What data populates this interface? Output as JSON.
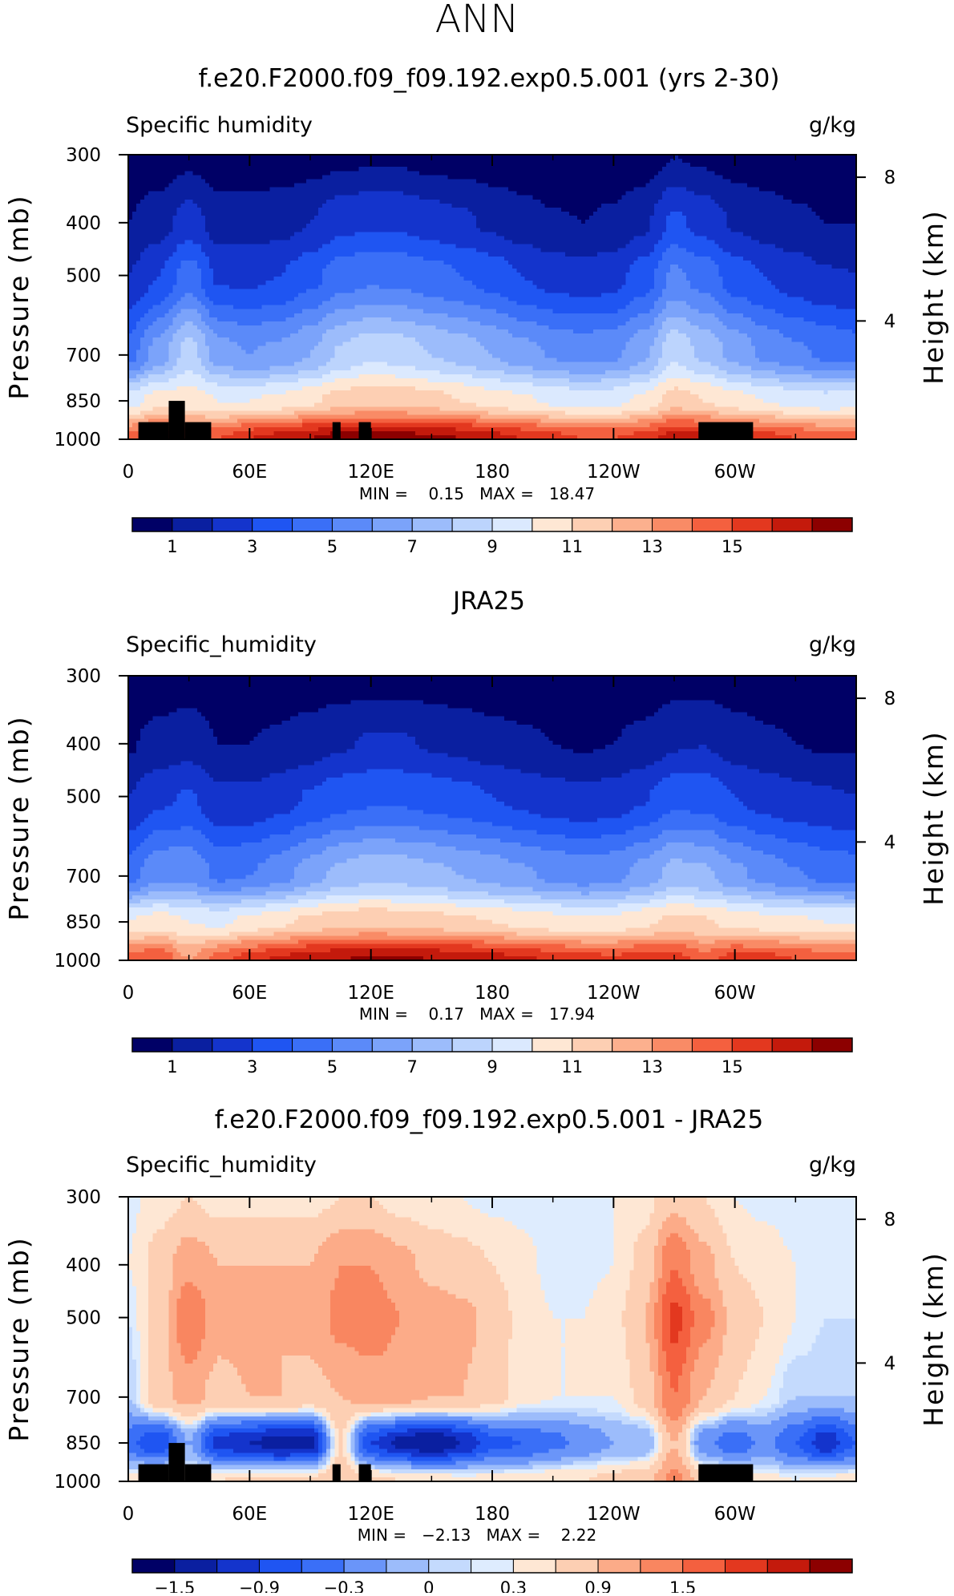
{
  "page_title": "ANN",
  "colors": {
    "absolute": [
      "#000066",
      "#0a1fa0",
      "#1434cc",
      "#1f55f2",
      "#3a6ff7",
      "#5b8af9",
      "#7ba3fa",
      "#9cbcfb",
      "#bcd4fd",
      "#dbe9fe",
      "#fee7d4",
      "#fdcfb3",
      "#fcb08e",
      "#f98b66",
      "#f4603f",
      "#e3381f",
      "#c41a0c",
      "#8c0000"
    ],
    "difference": [
      "#000066",
      "#0a1fa0",
      "#1434cc",
      "#1f55f2",
      "#3a6ff7",
      "#6a95f9",
      "#9cbcfb",
      "#c4dafd",
      "#deecfe",
      "#fee7d4",
      "#fdcfb3",
      "#fcab88",
      "#f98660",
      "#f4603f",
      "#e3381f",
      "#c41a0c",
      "#8c0000"
    ]
  },
  "panels": [
    {
      "title": "f.e20.F2000.f09_f09.192.exp0.5.001 (yrs 2-30)",
      "var_label": "Specific humidity",
      "units": "g/kg",
      "stats_text": "MIN =    0.15   MAX =   18.47",
      "colorbar_labels": [
        "1",
        "3",
        "5",
        "7",
        "9",
        "11",
        "13",
        "15"
      ]
    },
    {
      "title": "JRA25",
      "var_label": "Specific_humidity",
      "units": "g/kg",
      "stats_text": "MIN =    0.17   MAX =   17.94",
      "colorbar_labels": [
        "1",
        "3",
        "5",
        "7",
        "9",
        "11",
        "13",
        "15"
      ]
    },
    {
      "title": "f.e20.F2000.f09_f09.192.exp0.5.001 - JRA25",
      "var_label": "Specific_humidity",
      "units": "g/kg",
      "stats_text": "MIN =   −2.13   MAX =    2.22",
      "colorbar_labels": [
        "−1.5",
        "−0.9",
        "−0.3",
        "0",
        "0.3",
        "0.9",
        "1.5"
      ]
    }
  ],
  "chart_data": [
    {
      "type": "heatmap",
      "title": "f.e20.F2000.f09_f09.192.exp0.5.001 (yrs 2-30)",
      "variable": "Specific humidity",
      "units": "g/kg",
      "ylabel": "Pressure (mb)",
      "y2label": "Height (km)",
      "x_ticks": [
        "0",
        "60E",
        "120E",
        "180",
        "120W",
        "60W"
      ],
      "x_tick_values": [
        0,
        60,
        120,
        180,
        240,
        300
      ],
      "xlim": [
        0,
        360
      ],
      "y_ticks": [
        "300",
        "400",
        "500",
        "700",
        "850",
        "1000"
      ],
      "y_tick_values": [
        300,
        400,
        500,
        700,
        850,
        1000
      ],
      "ylim": [
        1000,
        300
      ],
      "y2_ticks": [
        "8",
        "4"
      ],
      "min": 0.15,
      "max": 18.47,
      "contour_levels": [
        1,
        2,
        3,
        4,
        5,
        6,
        7,
        8,
        9,
        10,
        11,
        12,
        13,
        14,
        15,
        16,
        17
      ],
      "colorbar_labels": [
        "1",
        "3",
        "5",
        "7",
        "9",
        "11",
        "13",
        "15"
      ],
      "field": {
        "lon": [
          0,
          15,
          30,
          45,
          60,
          75,
          90,
          105,
          120,
          135,
          150,
          165,
          180,
          195,
          210,
          225,
          240,
          255,
          270,
          285,
          300,
          315,
          330,
          345,
          360
        ],
        "plev": [
          300,
          400,
          500,
          700,
          850,
          1000
        ],
        "q": [
          [
            0.3,
            0.4,
            0.7,
            0.4,
            0.4,
            0.4,
            0.5,
            0.7,
            0.8,
            0.8,
            0.6,
            0.5,
            0.4,
            0.3,
            0.3,
            0.2,
            0.3,
            0.4,
            1.0,
            0.8,
            0.5,
            0.4,
            0.3,
            0.3,
            0.3
          ],
          [
            1.0,
            1.5,
            2.5,
            1.5,
            1.5,
            1.6,
            2.0,
            2.7,
            2.9,
            2.8,
            2.5,
            2.2,
            1.8,
            1.4,
            1.1,
            1.0,
            1.2,
            1.8,
            3.2,
            2.6,
            1.9,
            1.5,
            1.2,
            1.0,
            1.0
          ],
          [
            2.0,
            3.0,
            4.5,
            2.8,
            2.8,
            3.0,
            3.7,
            4.5,
            4.8,
            4.7,
            4.4,
            4.0,
            3.6,
            3.0,
            2.6,
            2.4,
            2.6,
            3.5,
            5.2,
            4.6,
            3.5,
            3.0,
            2.5,
            2.1,
            2.0
          ],
          [
            4.5,
            6.5,
            8.5,
            6.5,
            6.0,
            6.3,
            7.0,
            8.2,
            8.8,
            8.6,
            8.0,
            7.6,
            7.0,
            6.4,
            5.9,
            5.6,
            5.8,
            6.8,
            8.8,
            7.8,
            6.7,
            5.8,
            5.2,
            4.8,
            4.5
          ],
          [
            9.5,
            10.5,
            10.5,
            10.0,
            10.0,
            10.3,
            10.8,
            11.5,
            11.8,
            11.7,
            11.4,
            11.0,
            10.6,
            10.2,
            9.8,
            9.6,
            9.7,
            10.3,
            11.5,
            11.0,
            10.4,
            10.0,
            9.6,
            9.4,
            9.5
          ],
          [
            14.5,
            15.5,
            15.0,
            15.0,
            16.0,
            16.5,
            17.0,
            17.5,
            17.5,
            17.5,
            17.3,
            17.0,
            16.5,
            16.0,
            15.5,
            15.0,
            15.0,
            15.5,
            16.5,
            16.5,
            16.0,
            15.5,
            15.0,
            14.5,
            14.5
          ]
        ]
      },
      "topography": [
        {
          "lon_range": [
            5,
            20
          ],
          "top_mb": 930
        },
        {
          "lon_range": [
            20,
            28
          ],
          "top_mb": 850
        },
        {
          "lon_range": [
            28,
            41
          ],
          "top_mb": 930
        },
        {
          "lon_range": [
            101,
            105
          ],
          "top_mb": 930
        },
        {
          "lon_range": [
            114,
            120
          ],
          "top_mb": 930
        },
        {
          "lon_range": [
            282,
            309
          ],
          "top_mb": 930
        }
      ]
    },
    {
      "type": "heatmap",
      "title": "JRA25",
      "variable": "Specific_humidity",
      "units": "g/kg",
      "ylabel": "Pressure (mb)",
      "y2label": "Height (km)",
      "x_ticks": [
        "0",
        "60E",
        "120E",
        "180",
        "120W",
        "60W"
      ],
      "x_tick_values": [
        0,
        60,
        120,
        180,
        240,
        300
      ],
      "xlim": [
        0,
        360
      ],
      "y_ticks": [
        "300",
        "400",
        "500",
        "700",
        "850",
        "1000"
      ],
      "y_tick_values": [
        300,
        400,
        500,
        700,
        850,
        1000
      ],
      "ylim": [
        1000,
        300
      ],
      "y2_ticks": [
        "8",
        "4"
      ],
      "min": 0.17,
      "max": 17.94,
      "contour_levels": [
        1,
        2,
        3,
        4,
        5,
        6,
        7,
        8,
        9,
        10,
        11,
        12,
        13,
        14,
        15,
        16,
        17
      ],
      "colorbar_labels": [
        "1",
        "3",
        "5",
        "7",
        "9",
        "11",
        "13",
        "15"
      ],
      "field": {
        "lon": [
          0,
          15,
          30,
          45,
          60,
          75,
          90,
          105,
          120,
          135,
          150,
          165,
          180,
          195,
          210,
          225,
          240,
          255,
          270,
          285,
          300,
          315,
          330,
          345,
          360
        ],
        "plev": [
          300,
          400,
          500,
          700,
          850,
          1000
        ],
        "q": [
          [
            0.3,
            0.4,
            0.5,
            0.3,
            0.3,
            0.3,
            0.4,
            0.5,
            0.6,
            0.6,
            0.5,
            0.4,
            0.3,
            0.3,
            0.2,
            0.2,
            0.3,
            0.3,
            0.6,
            0.6,
            0.4,
            0.3,
            0.3,
            0.3,
            0.3
          ],
          [
            0.9,
            1.3,
            1.6,
            1.0,
            1.0,
            1.2,
            1.5,
            1.9,
            2.1,
            2.1,
            1.9,
            1.7,
            1.4,
            1.2,
            1.0,
            0.9,
            1.0,
            1.3,
            1.9,
            2.0,
            1.5,
            1.2,
            1.0,
            0.9,
            0.9
          ],
          [
            2.0,
            2.8,
            3.1,
            2.2,
            2.2,
            2.6,
            3.1,
            3.6,
            3.8,
            3.8,
            3.6,
            3.3,
            3.0,
            2.7,
            2.4,
            2.2,
            2.4,
            2.9,
            3.7,
            3.6,
            3.0,
            2.6,
            2.3,
            2.1,
            2.0
          ],
          [
            4.5,
            5.8,
            5.8,
            4.8,
            5.0,
            5.6,
            6.5,
            7.3,
            7.7,
            7.6,
            7.3,
            7.0,
            6.6,
            6.2,
            5.8,
            5.5,
            5.7,
            6.4,
            7.4,
            7.2,
            6.3,
            5.6,
            5.1,
            4.7,
            4.5
          ],
          [
            10.0,
            10.5,
            10.0,
            9.8,
            10.3,
            10.8,
            11.3,
            11.7,
            11.8,
            11.7,
            11.5,
            11.2,
            11.0,
            10.7,
            10.4,
            10.2,
            10.3,
            10.8,
            11.3,
            11.1,
            10.7,
            10.4,
            10.2,
            10.0,
            10.0
          ],
          [
            14.5,
            15.0,
            13.0,
            14.5,
            15.5,
            16.2,
            16.7,
            17.0,
            17.2,
            17.2,
            17.0,
            16.8,
            16.5,
            16.2,
            15.8,
            15.4,
            15.3,
            15.6,
            15.5,
            14.5,
            15.5,
            15.5,
            15.0,
            14.7,
            14.5
          ]
        ]
      },
      "topography": []
    },
    {
      "type": "heatmap",
      "title": "f.e20.F2000.f09_f09.192.exp0.5.001 - JRA25",
      "variable": "Specific_humidity",
      "units": "g/kg",
      "ylabel": "Pressure (mb)",
      "y2label": "Height (km)",
      "x_ticks": [
        "0",
        "60E",
        "120E",
        "180",
        "120W",
        "60W"
      ],
      "x_tick_values": [
        0,
        60,
        120,
        180,
        240,
        300
      ],
      "xlim": [
        0,
        360
      ],
      "y_ticks": [
        "300",
        "400",
        "500",
        "700",
        "850",
        "1000"
      ],
      "y_tick_values": [
        300,
        400,
        500,
        700,
        850,
        1000
      ],
      "ylim": [
        1000,
        300
      ],
      "y2_ticks": [
        "8",
        "4"
      ],
      "min": -2.13,
      "max": 2.22,
      "contour_levels": [
        -1.8,
        -1.5,
        -1.2,
        -0.9,
        -0.6,
        -0.3,
        -0.1,
        0,
        0.1,
        0.3,
        0.6,
        0.9,
        1.2,
        1.5,
        1.8,
        2.1
      ],
      "colorbar_labels": [
        "−1.5",
        "−0.9",
        "−0.3",
        "0",
        "0.3",
        "0.9",
        "1.5"
      ],
      "field": {
        "lon": [
          0,
          15,
          30,
          45,
          60,
          75,
          90,
          105,
          120,
          135,
          150,
          165,
          180,
          195,
          210,
          225,
          240,
          255,
          270,
          285,
          300,
          315,
          330,
          345,
          360
        ],
        "plev": [
          300,
          400,
          500,
          700,
          850,
          1000
        ],
        "q": [
          [
            0.05,
            0.2,
            0.3,
            0.2,
            0.2,
            0.2,
            0.2,
            0.3,
            0.3,
            0.2,
            0.15,
            0.1,
            0.05,
            0.05,
            0.05,
            0.05,
            0.1,
            0.2,
            0.5,
            0.3,
            0.1,
            0.05,
            0.0,
            0.0,
            0.05
          ],
          [
            0.1,
            0.4,
            0.8,
            0.6,
            0.6,
            0.6,
            0.6,
            0.9,
            0.9,
            0.7,
            0.5,
            0.4,
            0.3,
            0.15,
            0.05,
            0.05,
            0.1,
            0.4,
            1.2,
            0.7,
            0.3,
            0.2,
            0.1,
            0.05,
            0.1
          ],
          [
            0.0,
            0.4,
            1.2,
            0.7,
            0.7,
            0.6,
            0.7,
            1.0,
            1.1,
            0.9,
            0.8,
            0.7,
            0.5,
            0.2,
            0.1,
            0.1,
            0.2,
            0.6,
            1.6,
            1.0,
            0.5,
            0.3,
            0.1,
            0.0,
            0.0
          ],
          [
            -0.1,
            0.5,
            0.7,
            0.5,
            0.6,
            0.6,
            0.5,
            0.6,
            0.7,
            0.7,
            0.6,
            0.6,
            0.4,
            0.2,
            0.1,
            0.1,
            0.1,
            0.4,
            1.2,
            0.6,
            0.3,
            0.1,
            -0.1,
            -0.1,
            -0.1
          ],
          [
            -0.8,
            -1.2,
            -0.3,
            -1.3,
            -1.5,
            -1.7,
            -1.6,
            0.3,
            -1.2,
            -1.6,
            -1.8,
            -1.5,
            -1.0,
            -0.9,
            -0.7,
            -0.5,
            -0.3,
            -0.3,
            0.6,
            -0.5,
            -0.8,
            -0.5,
            -0.9,
            -1.4,
            -0.9
          ],
          [
            0.2,
            0.4,
            0.2,
            0.3,
            0.4,
            0.4,
            0.4,
            0.5,
            0.4,
            0.3,
            0.3,
            0.2,
            0.2,
            0.2,
            0.3,
            0.3,
            0.4,
            0.5,
            1.0,
            0.4,
            0.3,
            0.2,
            0.1,
            0.2,
            0.2
          ]
        ]
      },
      "topography": [
        {
          "lon_range": [
            5,
            20
          ],
          "top_mb": 930
        },
        {
          "lon_range": [
            20,
            28
          ],
          "top_mb": 850
        },
        {
          "lon_range": [
            28,
            41
          ],
          "top_mb": 930
        },
        {
          "lon_range": [
            101,
            105
          ],
          "top_mb": 930
        },
        {
          "lon_range": [
            114,
            120
          ],
          "top_mb": 930
        },
        {
          "lon_range": [
            282,
            309
          ],
          "top_mb": 930
        }
      ]
    }
  ]
}
